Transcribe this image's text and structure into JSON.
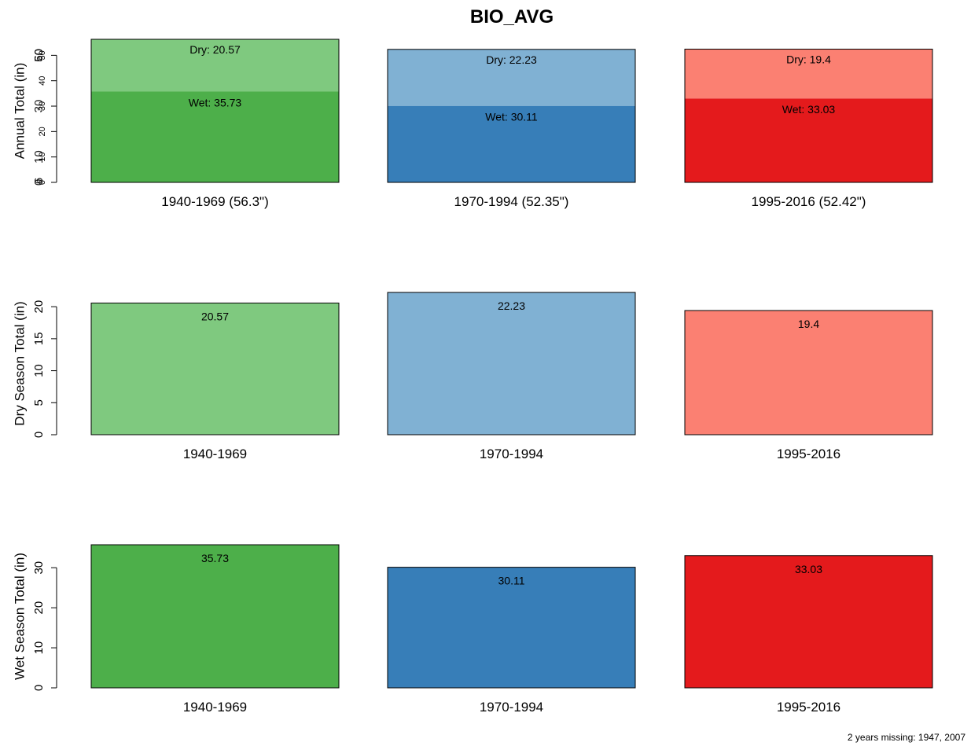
{
  "title": "BIO_AVG",
  "footnote": "2 years missing: 1947, 2007",
  "colors": {
    "green_dark": "#4DAF4A",
    "green_light": "#7FC97F",
    "blue_dark": "#377EB8",
    "blue_light": "#80B1D3",
    "red_dark": "#E41A1C",
    "red_light": "#FB8072"
  },
  "chart_data": [
    {
      "type": "bar",
      "stacked": true,
      "ylabel": "Annual Total (in)",
      "yticks": [
        0,
        10,
        20,
        30,
        40,
        50
      ],
      "ytick_labels_overlaid": [
        "0",
        "6",
        "10",
        "20",
        "30",
        "40",
        "50",
        "60"
      ],
      "categories": [
        "1940-1969 (56.3\")",
        "1970-1994 (52.35\")",
        "1995-2016 (52.42\")"
      ],
      "series": [
        {
          "values": [
            35.73,
            30.11,
            33.03
          ],
          "labels": [
            "Wet: 35.73",
            "Wet: 30.11",
            "Wet: 33.03"
          ]
        },
        {
          "values": [
            20.57,
            22.23,
            19.4
          ],
          "labels": [
            "Dry: 20.57",
            "Dry: 22.23",
            "Dry: 19.4"
          ]
        }
      ],
      "colors_bottom": [
        "#4DAF4A",
        "#377EB8",
        "#E41A1C"
      ],
      "colors_top": [
        "#7FC97F",
        "#80B1D3",
        "#FB8072"
      ],
      "ylim": [
        0,
        56.3
      ]
    },
    {
      "type": "bar",
      "ylabel": "Dry Season Total (in)",
      "yticks": [
        0,
        5,
        10,
        15,
        20
      ],
      "categories": [
        "1940-1969",
        "1970-1994",
        "1995-2016"
      ],
      "values": [
        20.57,
        22.23,
        19.4
      ],
      "labels": [
        "20.57",
        "22.23",
        "19.4"
      ],
      "colors": [
        "#7FC97F",
        "#80B1D3",
        "#FB8072"
      ],
      "ylim": [
        0,
        22.23
      ]
    },
    {
      "type": "bar",
      "ylabel": "Wet Season Total (in)",
      "yticks": [
        0,
        10,
        20,
        30
      ],
      "categories": [
        "1940-1969",
        "1970-1994",
        "1995-2016"
      ],
      "values": [
        35.73,
        30.11,
        33.03
      ],
      "labels": [
        "35.73",
        "30.11",
        "33.03"
      ],
      "colors": [
        "#4DAF4A",
        "#377EB8",
        "#E41A1C"
      ],
      "ylim": [
        0,
        35.73
      ]
    }
  ]
}
